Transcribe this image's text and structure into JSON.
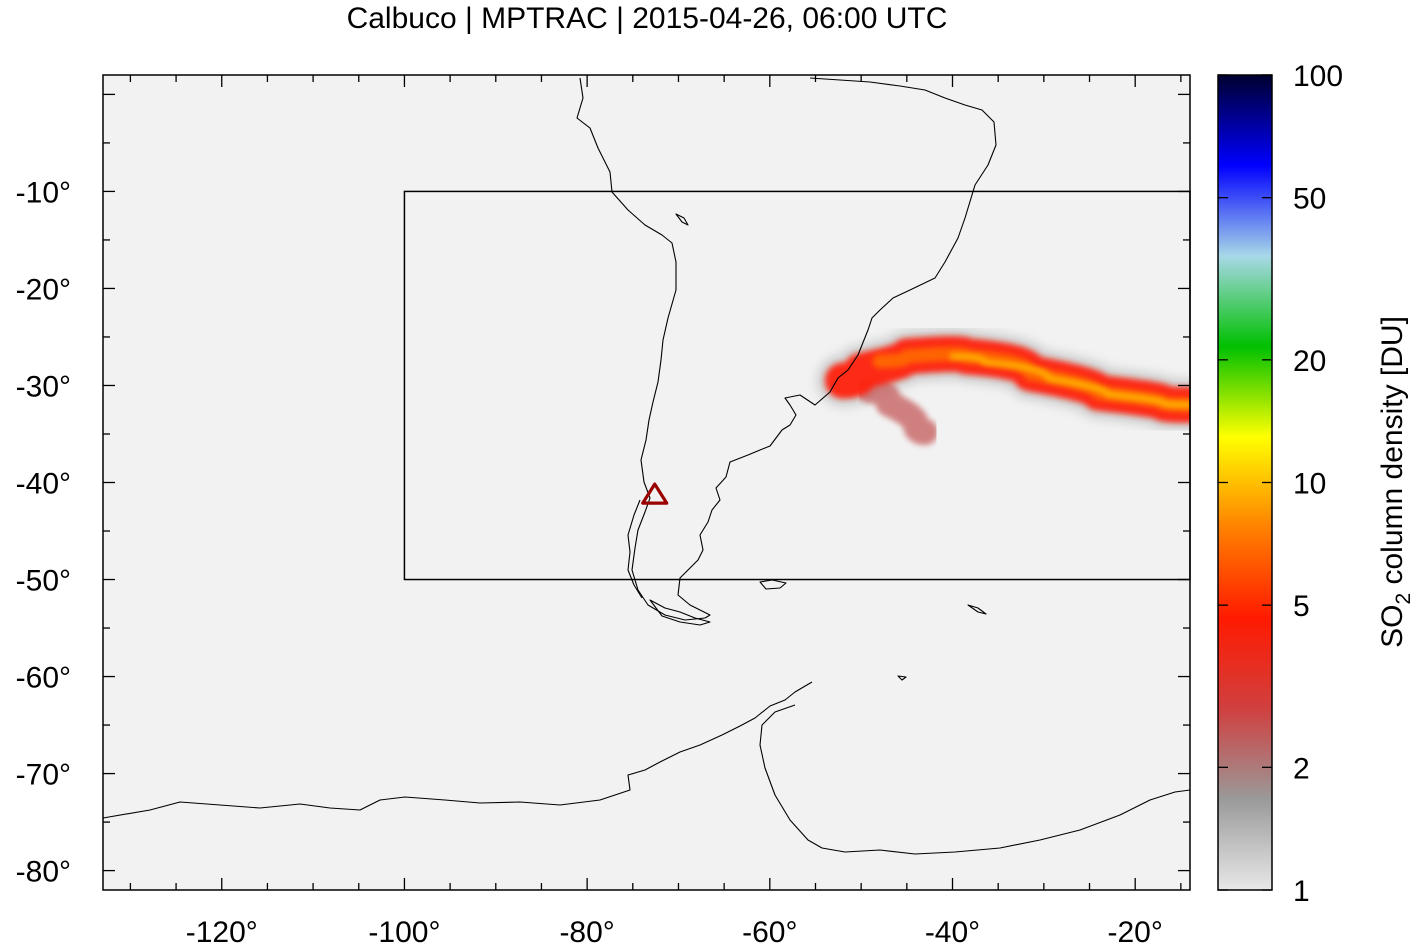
{
  "title": "Calbuco | MPTRAC | 2015-04-26, 06:00 UTC",
  "map": {
    "lon_range": [
      -133,
      -14
    ],
    "lat_range": [
      -82,
      2
    ],
    "background_color": "#f2f2f2",
    "coastline_color": "#000000",
    "x_ticks": [
      {
        "value": -120,
        "label": "-120°"
      },
      {
        "value": -100,
        "label": "-100°"
      },
      {
        "value": -80,
        "label": "-80°"
      },
      {
        "value": -60,
        "label": "-60°"
      },
      {
        "value": -40,
        "label": "-40°"
      },
      {
        "value": -20,
        "label": "-20°"
      }
    ],
    "y_ticks": [
      {
        "value": -10,
        "label": "-10°"
      },
      {
        "value": -20,
        "label": "-20°"
      },
      {
        "value": -30,
        "label": "-30°"
      },
      {
        "value": -40,
        "label": "-40°"
      },
      {
        "value": -50,
        "label": "-50°"
      },
      {
        "value": -60,
        "label": "-60°"
      },
      {
        "value": -70,
        "label": "-70°"
      },
      {
        "value": -80,
        "label": "-80°"
      }
    ],
    "region_box": {
      "lon": [
        -100,
        -14
      ],
      "lat": [
        -50,
        -10
      ]
    },
    "volcano": {
      "name": "Calbuco",
      "lon": -72.6,
      "lat": -41.3,
      "marker_color": "#9b0000"
    }
  },
  "colorbar": {
    "label": "SO2 column density [DU]",
    "label_main": "SO",
    "label_sub": "2",
    "label_rest": " column density [DU]",
    "scale": "log",
    "range": [
      1,
      100
    ],
    "ticks": [
      {
        "value": 1,
        "label": "1"
      },
      {
        "value": 2,
        "label": "2"
      },
      {
        "value": 5,
        "label": "5"
      },
      {
        "value": 10,
        "label": "10"
      },
      {
        "value": 20,
        "label": "20"
      },
      {
        "value": 50,
        "label": "50"
      },
      {
        "value": 100,
        "label": "100"
      }
    ],
    "colors": [
      "#e8e8e8",
      "#9a9a9a",
      "#d04040",
      "#ff1a00",
      "#ff8000",
      "#ffff00",
      "#00c000",
      "#a8d8e8",
      "#0000ff",
      "#000030"
    ]
  },
  "plume": {
    "main_axis": [
      [
        -52,
        -29.5
      ],
      [
        -48,
        -27.5
      ],
      [
        -42,
        -26.5
      ],
      [
        -35,
        -27.5
      ],
      [
        -28,
        -30
      ],
      [
        -20,
        -31.5
      ],
      [
        -14,
        -32
      ]
    ],
    "core_axis": [
      [
        -40,
        -27
      ],
      [
        -33,
        -28.2
      ],
      [
        -26,
        -30.3
      ],
      [
        -20,
        -31.5
      ],
      [
        -14,
        -32
      ]
    ],
    "secondary_blob": [
      [
        -49,
        -30.5
      ],
      [
        -45,
        -33.2
      ],
      [
        -43,
        -34.8
      ]
    ]
  }
}
